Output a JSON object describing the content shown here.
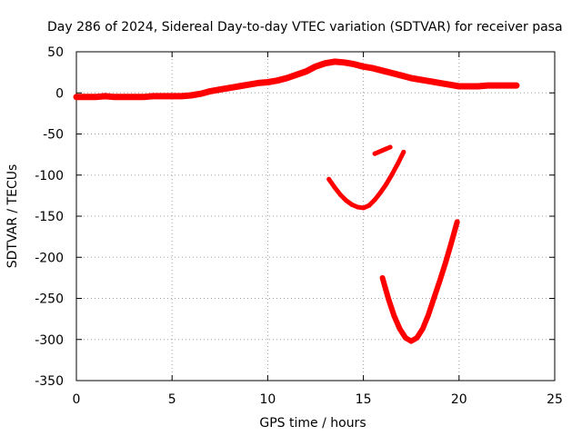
{
  "chart_data": {
    "type": "scatter",
    "title": "Day 286 of 2024, Sidereal Day-to-day VTEC variation (SDTVAR) for receiver pasa",
    "xlabel": "GPS time / hours",
    "ylabel": "SDTVAR / TECUs",
    "xlim": [
      0,
      25
    ],
    "ylim": [
      -350,
      50
    ],
    "xticks": [
      "0",
      "5",
      "10",
      "15",
      "20",
      "25"
    ],
    "yticks": [
      "50",
      "0",
      "-50",
      "-100",
      "-150",
      "-200",
      "-250",
      "-300",
      "-350"
    ],
    "grid": true,
    "color": "#ff0000",
    "series": [
      {
        "x": [
          0,
          0.5,
          1,
          1.5,
          2,
          2.5,
          3,
          3.5,
          4,
          4.5,
          5,
          5.5,
          6,
          6.5,
          7,
          7.5,
          8,
          8.5,
          9,
          9.5,
          10,
          10.5,
          11,
          11.5,
          12,
          12.5,
          13,
          13.5,
          14,
          14.5,
          15,
          15.5,
          16,
          16.5,
          17,
          17.5,
          18,
          18.5,
          19,
          19.5,
          20,
          20.5,
          21,
          21.5,
          22,
          22.5,
          23
        ],
        "y": [
          -5,
          -5,
          -5,
          -4,
          -5,
          -5,
          -5,
          -5,
          -4,
          -4,
          -4,
          -4,
          -3,
          -1,
          2,
          4,
          6,
          8,
          10,
          12,
          13,
          15,
          18,
          22,
          26,
          32,
          36,
          38,
          37,
          35,
          32,
          30,
          27,
          24,
          21,
          18,
          16,
          14,
          12,
          10,
          8,
          8,
          8,
          9,
          9,
          9,
          9
        ]
      },
      {
        "x": [
          13.2,
          13.5,
          13.8,
          14.1,
          14.4,
          14.7,
          15.0,
          15.3,
          15.6,
          15.9,
          16.2,
          16.5,
          16.8,
          17.1
        ],
        "y": [
          -105,
          -115,
          -124,
          -131,
          -136,
          -139,
          -140,
          -137,
          -130,
          -121,
          -111,
          -99,
          -86,
          -72
        ]
      },
      {
        "x": [
          15.6,
          15.8,
          16.0,
          16.2,
          16.4
        ],
        "y": [
          -74,
          -72,
          -70,
          -68,
          -66
        ]
      },
      {
        "x": [
          16.0,
          16.3,
          16.6,
          16.9,
          17.2,
          17.5,
          17.8,
          18.1,
          18.4,
          18.7,
          19.0,
          19.3,
          19.6,
          19.9
        ],
        "y": [
          -225,
          -250,
          -271,
          -287,
          -298,
          -302,
          -298,
          -287,
          -270,
          -249,
          -228,
          -206,
          -182,
          -157
        ]
      }
    ]
  }
}
